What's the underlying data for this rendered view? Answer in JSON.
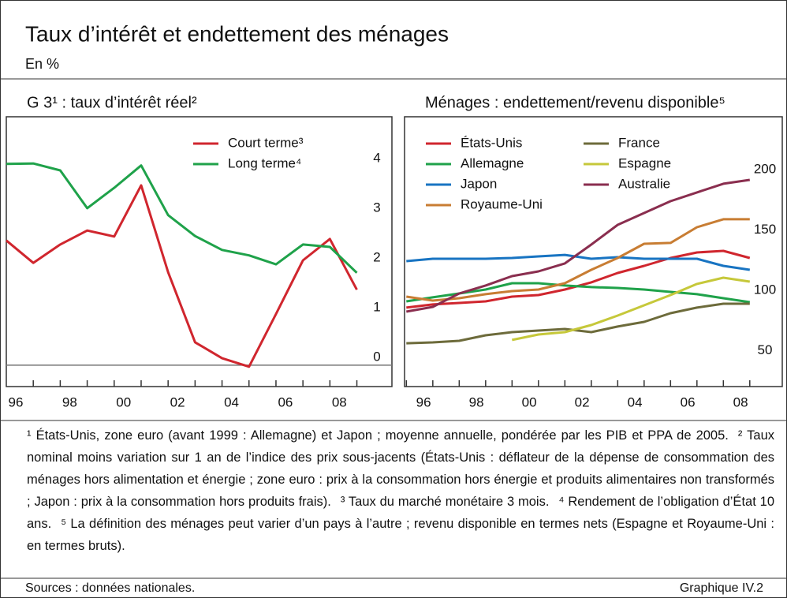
{
  "header": {
    "title": "Taux d’intérêt et endettement des ménages",
    "subtitle": "En %"
  },
  "chart_data": [
    {
      "type": "line",
      "title": "G 3¹ : taux d’intérêt réel²",
      "x": [
        1995.65,
        1996.65,
        1997.65,
        1998.65,
        1999.65,
        2000.65,
        2001.65,
        2002.65,
        2003.65,
        2004.65,
        2005.65,
        2006.65,
        2007.65,
        2008.65
      ],
      "series": [
        {
          "name": "Court terme³",
          "color": "#d0262e",
          "values": [
            2.51,
            2.06,
            2.43,
            2.71,
            2.59,
            3.62,
            1.87,
            0.46,
            0.14,
            -0.03,
            1.03,
            2.11,
            2.54,
            1.52
          ]
        },
        {
          "name": "Long terme⁴",
          "color": "#1fa24a",
          "values": [
            4.05,
            4.06,
            3.92,
            3.16,
            3.57,
            4.02,
            3.02,
            2.6,
            2.32,
            2.21,
            2.03,
            2.43,
            2.38,
            1.86
          ]
        }
      ],
      "xlim": [
        1995.65,
        2009.95
      ],
      "ylim": [
        -0.43,
        5.0
      ],
      "xticks": [
        {
          "value": 1996,
          "label": "96"
        },
        {
          "value": 1998,
          "label": "98"
        },
        {
          "value": 2000,
          "label": "00"
        },
        {
          "value": 2002,
          "label": "02"
        },
        {
          "value": 2004,
          "label": "04"
        },
        {
          "value": 2006,
          "label": "06"
        },
        {
          "value": 2008,
          "label": "08"
        }
      ],
      "yticks": [
        0,
        1,
        2,
        3,
        4
      ],
      "hline": 0,
      "legend": "top-right"
    },
    {
      "type": "line",
      "title": "Ménages : endettement/revenu disponible⁵",
      "x": [
        1995.35,
        1996.35,
        1997.35,
        1998.35,
        1999.35,
        2000.35,
        2001.35,
        2002.35,
        2003.35,
        2004.35,
        2005.35,
        2006.35,
        2007.35,
        2008.35
      ],
      "series": [
        {
          "name": "États-Unis",
          "color": "#d0262e",
          "values": [
            92.2,
            94.8,
            96.1,
            97.4,
            101.3,
            102.6,
            107.2,
            113.1,
            120.9,
            126.8,
            133.3,
            137.9,
            139.2,
            133.3
          ]
        },
        {
          "name": "Allemagne",
          "color": "#1fa24a",
          "values": [
            97.4,
            100.7,
            103.9,
            107.2,
            112.4,
            112.4,
            110.5,
            109.2,
            108.5,
            107.2,
            105.2,
            103.3,
            100.0,
            96.7
          ]
        },
        {
          "name": "Japon",
          "color": "#1874c2",
          "values": [
            130.7,
            132.7,
            132.7,
            132.7,
            133.3,
            134.6,
            135.9,
            132.7,
            134.0,
            132.7,
            132.7,
            132.7,
            126.8,
            123.5
          ]
        },
        {
          "name": "Royaume-Uni",
          "color": "#c87d33",
          "values": [
            101.3,
            98.0,
            100.0,
            103.3,
            105.9,
            107.2,
            112.4,
            123.5,
            133.3,
            145.1,
            145.8,
            158.8,
            165.4,
            165.4
          ]
        },
        {
          "name": "France",
          "color": "#6d6b3b",
          "values": [
            62.7,
            63.4,
            64.7,
            69.3,
            71.9,
            73.2,
            74.5,
            71.9,
            76.5,
            80.4,
            87.6,
            92.2,
            95.4,
            95.4
          ]
        },
        {
          "name": "Espagne",
          "color": "#c6c83a",
          "values": [
            null,
            null,
            null,
            null,
            65.4,
            69.9,
            71.9,
            77.8,
            85.6,
            94.1,
            102.6,
            111.8,
            117.0,
            113.7
          ]
        },
        {
          "name": "Australie",
          "color": "#8a2e4f",
          "values": [
            88.9,
            92.8,
            103.9,
            110.5,
            118.3,
            122.2,
            128.8,
            144.4,
            160.8,
            170.6,
            180.4,
            187.6,
            194.8,
            198.0
          ]
        }
      ],
      "xlim": [
        1995.28,
        2009.58
      ],
      "ylim": [
        26.8,
        250.3
      ],
      "xticks": [
        {
          "value": 1996,
          "label": "96"
        },
        {
          "value": 1998,
          "label": "98"
        },
        {
          "value": 2000,
          "label": "00"
        },
        {
          "value": 2002,
          "label": "02"
        },
        {
          "value": 2004,
          "label": "04"
        },
        {
          "value": 2006,
          "label": "06"
        },
        {
          "value": 2008,
          "label": "08"
        }
      ],
      "yticks": [
        50,
        100,
        150,
        200
      ],
      "legend": "top-left"
    }
  ],
  "notes": [
    "¹ États-Unis, zone euro (avant 1999 : Allemagne) et Japon ; moyenne annuelle, pondérée par les PIB et PPA de 2005.",
    "² Taux nominal moins variation sur 1 an de l’indice des prix sous-jacents (États-Unis : déflateur de la dépense de consommation des ménages hors alimentation et énergie ; zone euro : prix à la consommation hors énergie et produits alimentaires non transformés ; Japon : prix à la consommation hors produits frais).",
    "³ Taux du marché monétaire 3 mois.",
    "⁴ Rendement de l’obligation d’État 10 ans.",
    "⁵ La définition des ménages peut varier d’un pays à l’autre ; revenu disponible en termes nets (Espagne et Royaume-Uni : en termes bruts)."
  ],
  "sources": "Sources : données nationales.",
  "figure_number": "Graphique IV.2"
}
